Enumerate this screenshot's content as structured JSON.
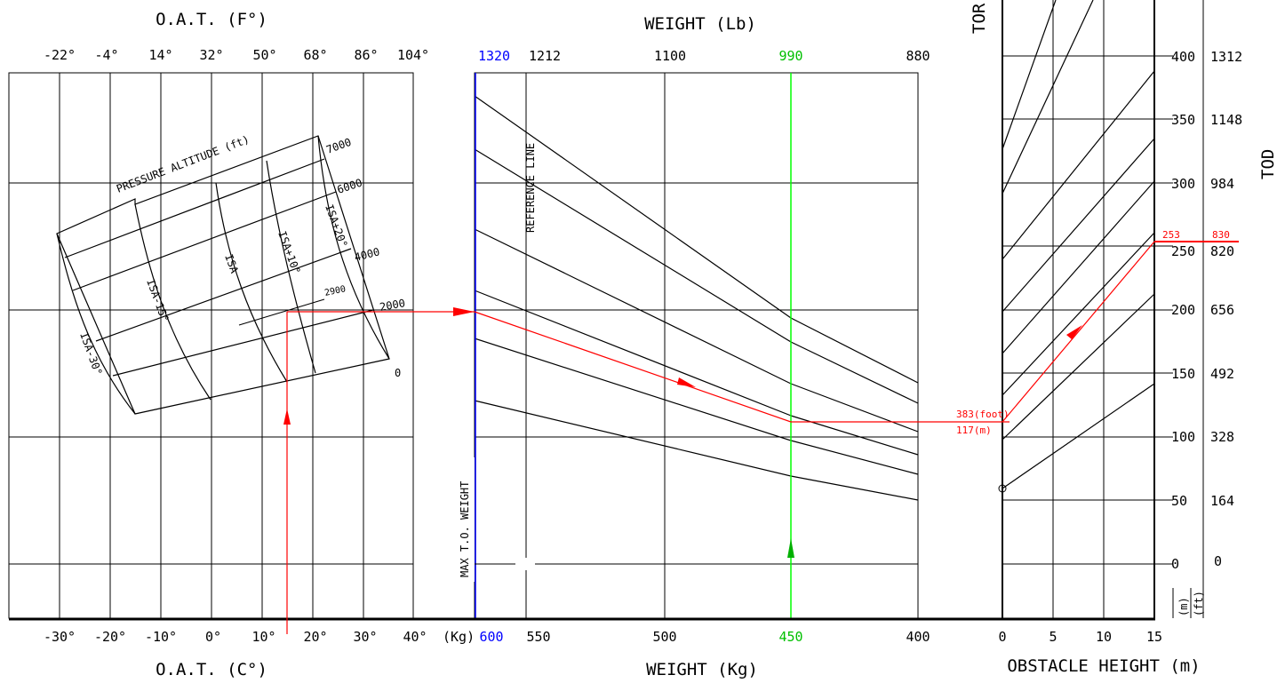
{
  "chart_data": {
    "type": "line",
    "panels": {
      "temperature": {
        "title_top": "O.A.T. (F°)",
        "title_bottom": "O.A.T. (C°)",
        "fahrenheit_ticks": [
          "-22°",
          "-4°",
          "14°",
          "32°",
          "50°",
          "68°",
          "86°",
          "104°"
        ],
        "celsius_ticks": [
          "-30°",
          "-20°",
          "-10°",
          "0°",
          "10°",
          "20°",
          "30°",
          "40°"
        ],
        "pressure_altitude_title": "PRESSURE ALTITUDE (ft)",
        "pressure_altitude_lines_ft": [
          "0",
          "2000",
          "4000",
          "6000",
          "7000"
        ],
        "isa_lines": [
          "ISA-30°",
          "ISA-15°",
          "ISA",
          "ISA+10°",
          "ISA+20°"
        ],
        "example": {
          "oat_c": 15,
          "pressure_altitude_ft": "2900"
        }
      },
      "weight": {
        "title_top": "WEIGHT (Lb)",
        "title_bottom": "WEIGHT (Kg)",
        "unit_label": "(Kg)",
        "lb_ticks": [
          "1320",
          "1212",
          "1100",
          "990",
          "880"
        ],
        "kg_ticks": [
          "600",
          "550",
          "500",
          "450",
          "400"
        ],
        "reference_line_label": "REFERENCE LINE",
        "max_weight_label": "MAX T.O. WEIGHT",
        "example_weight_kg": 450
      },
      "obstacle": {
        "title_bottom": "OBSTACLE HEIGHT (m)",
        "title_top_partial": "TOR",
        "x_ticks": [
          "0",
          "5",
          "10",
          "15"
        ],
        "tod_m_ticks": [
          "400",
          "350",
          "300",
          "250",
          "200",
          "150",
          "100",
          "50",
          "0"
        ],
        "tod_ft_ticks": [
          "1312",
          "1148",
          "984",
          "820",
          "656",
          "492",
          "328",
          "164",
          "0"
        ],
        "tod_axis_label": "TOD",
        "unit_m": "(m)",
        "unit_ft": "(ft)",
        "example": {
          "obstacle_m": 15,
          "tor_foot_label": "383(foot)",
          "tor_m_label": "117(m)",
          "tod_m_label": "253",
          "tod_ft_label": "830"
        }
      }
    },
    "colors": {
      "grid": "#000000",
      "example_path": "#ff0000",
      "max_weight_line": "#0000ff",
      "example_weight_line": "#00ff00"
    }
  }
}
